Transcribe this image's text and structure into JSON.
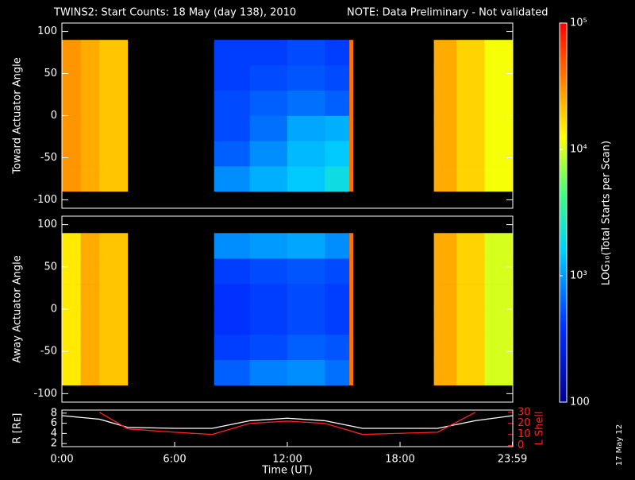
{
  "chart_data": [
    {
      "type": "heatmap",
      "title": "TWINS2: Start Counts: 18 May (day 138), 2010",
      "note": "NOTE: Data Preliminary - Not validated",
      "note_color": "#ff2020",
      "ylabel": "Toward Actuator Angle",
      "xbins": [
        0,
        1,
        2,
        3.5,
        8.1,
        10,
        12,
        14,
        15.3,
        15.5,
        19.8,
        21,
        22.5,
        24
      ],
      "ybins": [
        -90,
        -60,
        -30,
        0,
        30,
        60,
        90
      ],
      "z": [
        [
          30000,
          25000,
          20000,
          null,
          900,
          1200,
          1500,
          2000,
          40000,
          null,
          25000,
          18000,
          12000
        ],
        [
          30000,
          25000,
          20000,
          null,
          600,
          900,
          1300,
          1500,
          40000,
          null,
          25000,
          18000,
          12000
        ],
        [
          30000,
          25000,
          20000,
          null,
          500,
          700,
          1100,
          1200,
          40000,
          null,
          25000,
          18000,
          12000
        ],
        [
          30000,
          25000,
          20000,
          null,
          500,
          600,
          700,
          600,
          40000,
          null,
          25000,
          18000,
          12000
        ],
        [
          30000,
          25000,
          20000,
          null,
          450,
          500,
          550,
          500,
          40000,
          null,
          25000,
          18000,
          12000
        ],
        [
          30000,
          25000,
          20000,
          null,
          450,
          450,
          500,
          450,
          40000,
          null,
          25000,
          18000,
          12000
        ]
      ],
      "xlim": [
        0,
        24
      ],
      "ylim": [
        -110,
        110
      ],
      "yticks": [
        -100,
        -50,
        0,
        50,
        100
      ],
      "colorbar": {
        "label": "LOG₁₀(Total Starts per Scan)",
        "lim": [
          100,
          100000
        ],
        "log": true,
        "ticks": [
          100,
          {
            "value": 1000,
            "label": "10³"
          },
          {
            "value": 10000,
            "label": "10⁴"
          },
          {
            "value": 100000,
            "label": "10⁵"
          }
        ]
      }
    },
    {
      "type": "heatmap",
      "ylabel": "Away Actuator Angle",
      "xbins": [
        0,
        1,
        2,
        3.5,
        8.1,
        10,
        12,
        14,
        15.3,
        15.5,
        19.8,
        21,
        22.5,
        24
      ],
      "ybins": [
        -90,
        -60,
        -30,
        0,
        30,
        60,
        90
      ],
      "z": [
        [
          15000,
          25000,
          20000,
          null,
          600,
          800,
          900,
          700,
          40000,
          null,
          25000,
          18000,
          10000
        ],
        [
          15000,
          25000,
          20000,
          null,
          450,
          500,
          600,
          550,
          40000,
          null,
          25000,
          18000,
          10000
        ],
        [
          15000,
          25000,
          20000,
          null,
          400,
          450,
          500,
          450,
          40000,
          null,
          25000,
          18000,
          10000
        ],
        [
          15000,
          25000,
          20000,
          null,
          400,
          450,
          500,
          450,
          40000,
          null,
          25000,
          18000,
          10000
        ],
        [
          15000,
          25000,
          20000,
          null,
          450,
          500,
          550,
          500,
          40000,
          null,
          25000,
          18000,
          10000
        ],
        [
          15000,
          25000,
          20000,
          null,
          900,
          1000,
          1100,
          900,
          40000,
          null,
          25000,
          18000,
          10000
        ]
      ],
      "xlim": [
        0,
        24
      ],
      "ylim": [
        -110,
        110
      ],
      "yticks": [
        -100,
        -50,
        0,
        50,
        100
      ]
    },
    {
      "type": "line",
      "xlabel": "Time (UT)",
      "ylabel": "R [Rᴇ]",
      "y2label": "L Shell",
      "x": [
        0,
        2,
        3.5,
        6,
        8,
        10,
        12,
        14,
        16,
        18,
        20,
        22,
        24
      ],
      "series": [
        {
          "name": "R",
          "color": "#ffffff",
          "values": [
            7.5,
            6.8,
            5.2,
            5,
            5,
            6.5,
            7,
            6.5,
            5,
            5,
            5,
            6.5,
            7.5
          ]
        },
        {
          "name": "L Shell",
          "color": "#ff2020",
          "axis": "y2",
          "values": [
            null,
            30,
            15,
            12,
            10,
            20,
            22,
            20,
            10,
            11,
            12,
            30,
            null
          ]
        }
      ],
      "xlim": [
        0,
        24
      ],
      "xticks": [
        {
          "value": 0,
          "label": "0:00"
        },
        {
          "value": 6,
          "label": "6:00"
        },
        {
          "value": 12,
          "label": "12:00"
        },
        {
          "value": 18,
          "label": "18:00"
        },
        {
          "value": 23.98,
          "label": "23:59"
        }
      ],
      "ylim": [
        1.4,
        8.6
      ],
      "yticks": [
        2,
        4,
        6,
        8
      ],
      "y2lim": [
        -1,
        32
      ],
      "y2ticks": [
        0,
        10,
        20,
        30
      ],
      "y2color": "#ff2020"
    }
  ],
  "footer": "17 May 12"
}
